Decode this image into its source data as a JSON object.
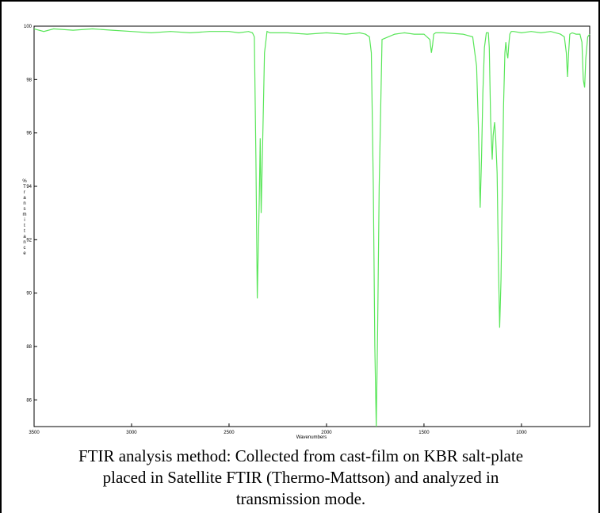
{
  "chart_data": {
    "type": "line",
    "title": "",
    "xlabel": "Wavenumbers",
    "ylabel": "%Transmittance",
    "xlim": [
      3500,
      650
    ],
    "ylim": [
      85,
      100
    ],
    "x_ticks": [
      3500,
      3000,
      2500,
      2000,
      1500,
      1000
    ],
    "x_tick_labels": [
      "3500",
      "3000",
      "2500",
      "2000",
      "1500",
      "1000"
    ],
    "y_ticks": [
      100,
      98,
      96,
      94,
      92,
      90,
      88,
      86
    ],
    "y_tick_labels": [
      "100",
      "98",
      "96",
      "94",
      "92",
      "90",
      "88",
      "86"
    ],
    "line_color": "#59e659",
    "series": [
      {
        "x": [
          3500,
          3450,
          3400,
          3300,
          3200,
          3100,
          3000,
          2900,
          2800,
          2700,
          2600,
          2500,
          2450,
          2400,
          2380,
          2370,
          2362,
          2355,
          2345,
          2340,
          2335,
          2325,
          2318,
          2305,
          2290,
          2200,
          2100,
          2000,
          1900,
          1830,
          1800,
          1780,
          1770,
          1760,
          1752,
          1745,
          1738,
          1730,
          1715,
          1650,
          1600,
          1550,
          1500,
          1470,
          1462,
          1456,
          1450,
          1440,
          1400,
          1300,
          1250,
          1230,
          1220,
          1212,
          1205,
          1198,
          1190,
          1180,
          1170,
          1165,
          1158,
          1150,
          1145,
          1138,
          1132,
          1125,
          1118,
          1112,
          1105,
          1098,
          1092,
          1085,
          1080,
          1075,
          1070,
          1065,
          1060,
          1052,
          1040,
          1000,
          950,
          900,
          850,
          800,
          780,
          770,
          764,
          758,
          752,
          740,
          720,
          700,
          690,
          683,
          676,
          670,
          660,
          650
        ],
        "y": [
          99.9,
          99.8,
          99.9,
          99.85,
          99.9,
          99.85,
          99.8,
          99.75,
          99.8,
          99.75,
          99.8,
          99.8,
          99.75,
          99.8,
          99.75,
          99.6,
          95.0,
          89.8,
          93.5,
          95.8,
          93.0,
          96.5,
          99.0,
          99.8,
          99.75,
          99.75,
          99.7,
          99.75,
          99.7,
          99.75,
          99.7,
          99.6,
          99.0,
          94.0,
          88.0,
          85.0,
          88.5,
          94.0,
          99.5,
          99.7,
          99.75,
          99.7,
          99.7,
          99.5,
          99.0,
          99.3,
          99.7,
          99.75,
          99.75,
          99.7,
          99.6,
          98.5,
          96.0,
          93.2,
          95.0,
          97.5,
          99.2,
          99.75,
          99.75,
          99.2,
          96.5,
          95.0,
          95.9,
          96.4,
          95.8,
          94.5,
          91.0,
          88.7,
          90.5,
          94.0,
          97.0,
          99.0,
          99.4,
          99.0,
          98.8,
          99.3,
          99.7,
          99.8,
          99.8,
          99.75,
          99.8,
          99.75,
          99.8,
          99.7,
          99.6,
          99.0,
          98.1,
          99.0,
          99.7,
          99.75,
          99.7,
          99.7,
          99.4,
          98.0,
          97.7,
          98.8,
          99.6,
          99.7
        ]
      }
    ]
  },
  "caption": {
    "line1": "FTIR analysis method: Collected from cast-film on KBR salt-plate",
    "line2": "placed in Satellite FTIR (Thermo-Mattson) and analyzed in",
    "line3": "transmission mode."
  }
}
